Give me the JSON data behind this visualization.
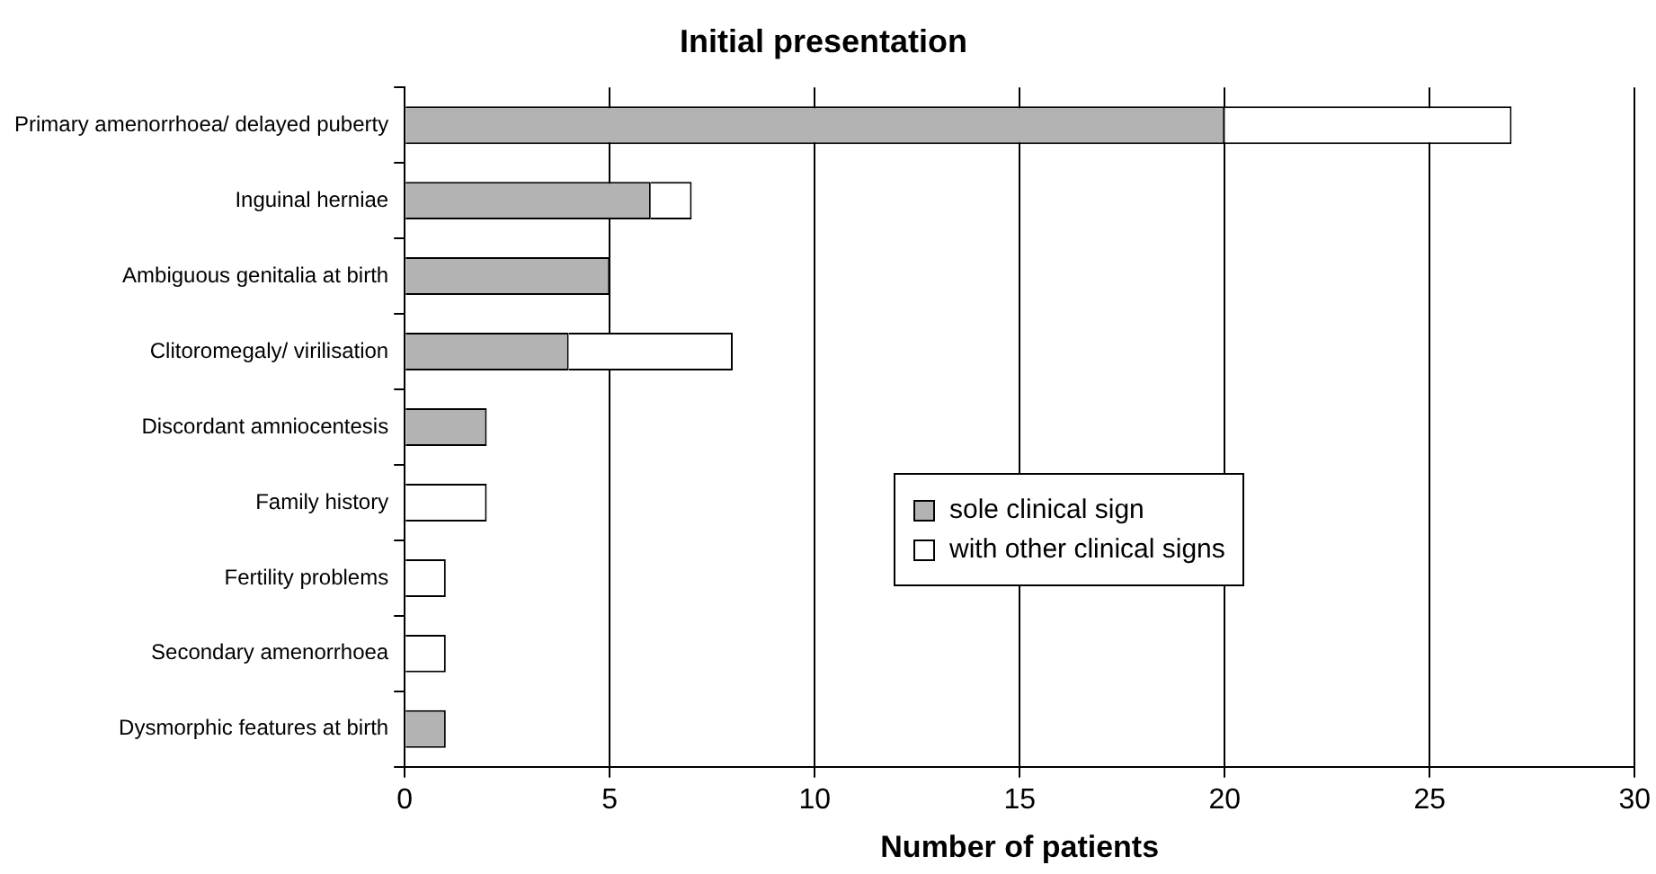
{
  "chart_data": {
    "type": "bar",
    "orientation": "horizontal",
    "stacked": true,
    "title": "Initial presentation",
    "xlabel": "Number of patients",
    "categories": [
      "Primary amenorrhoea/ delayed puberty",
      "Inguinal herniae",
      "Ambiguous genitalia at birth",
      "Clitoromegaly/ virilisation",
      "Discordant amniocentesis",
      "Family history",
      "Fertility problems",
      "Secondary amenorrhoea",
      "Dysmorphic features at birth"
    ],
    "series": [
      {
        "name": "sole clinical sign",
        "color": "#b3b3b3",
        "values": [
          20,
          6,
          5,
          4,
          2,
          0,
          0,
          0,
          1
        ]
      },
      {
        "name": "with other clinical signs",
        "color": "#ffffff",
        "values": [
          7,
          1,
          0,
          4,
          0,
          2,
          1,
          1,
          0
        ]
      }
    ],
    "xlim": [
      0,
      30
    ],
    "xticks": [
      0,
      5,
      10,
      15,
      20,
      25,
      30
    ],
    "grid": "x",
    "legend": "right"
  }
}
